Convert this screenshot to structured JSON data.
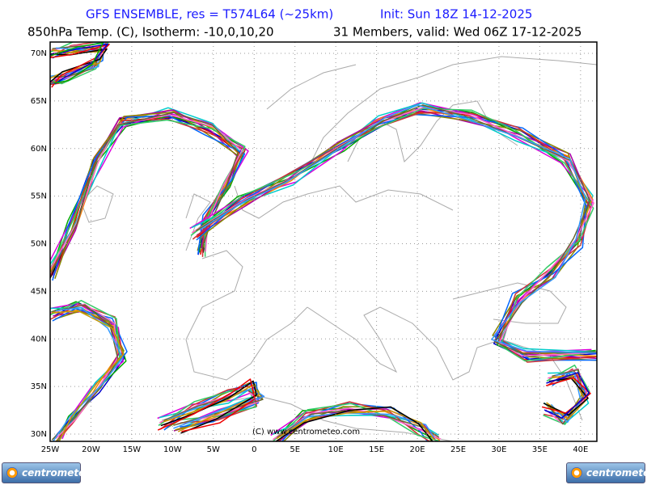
{
  "header": {
    "title_left": "GFS ENSEMBLE, res = T574L64 (~25km)",
    "title_right": "Init: Sun 18Z 14-12-2025",
    "subtitle_left": "850hPa Temp. (C), Isotherm: -10,0,10,20",
    "subtitle_right": "31 Members, valid: Wed 06Z 17-12-2025"
  },
  "map": {
    "lat_labels": [
      {
        "value": 70,
        "label": "70N"
      },
      {
        "value": 65,
        "label": "65N"
      },
      {
        "value": 60,
        "label": "60N"
      },
      {
        "value": 55,
        "label": "55N"
      },
      {
        "value": 50,
        "label": "50N"
      },
      {
        "value": 45,
        "label": "45N"
      },
      {
        "value": 40,
        "label": "40N"
      },
      {
        "value": 35,
        "label": "35N"
      },
      {
        "value": 30,
        "label": "30N"
      }
    ],
    "lon_labels": [
      {
        "value": -25,
        "label": "25W"
      },
      {
        "value": -20,
        "label": "20W"
      },
      {
        "value": -15,
        "label": "15W"
      },
      {
        "value": -10,
        "label": "10W"
      },
      {
        "value": -5,
        "label": "5W"
      },
      {
        "value": 0,
        "label": "0"
      },
      {
        "value": 5,
        "label": "5E"
      },
      {
        "value": 10,
        "label": "10E"
      },
      {
        "value": 15,
        "label": "15E"
      },
      {
        "value": 20,
        "label": "20E"
      },
      {
        "value": 25,
        "label": "25E"
      },
      {
        "value": 30,
        "label": "30E"
      },
      {
        "value": 35,
        "label": "35E"
      },
      {
        "value": 40,
        "label": "40E"
      }
    ],
    "copyright": "(C) www.centrometeo.com"
  },
  "logos": {
    "left": "centrometeo",
    "right": "centrometeo"
  }
}
